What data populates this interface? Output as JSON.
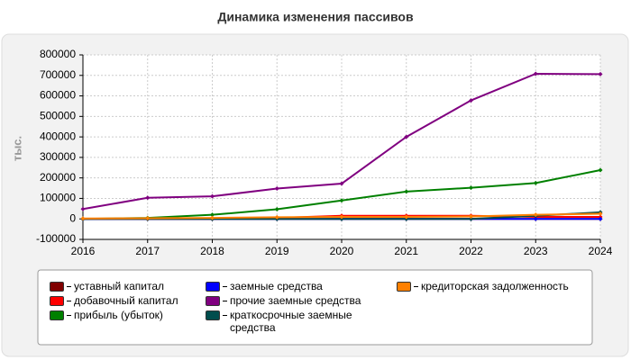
{
  "chart_data": {
    "type": "line",
    "title": "Динамика изменения пассивов",
    "y_label": "тыс.",
    "x": [
      2016,
      2017,
      2018,
      2019,
      2020,
      2021,
      2022,
      2023,
      2024
    ],
    "xlim": [
      2016,
      2024
    ],
    "xticks": [
      2016,
      2017,
      2018,
      2019,
      2020,
      2021,
      2022,
      2023,
      2024
    ],
    "ylim": [
      -100000,
      800000
    ],
    "yticks": [
      -100000,
      0,
      100000,
      200000,
      300000,
      400000,
      500000,
      600000,
      700000,
      800000
    ],
    "grid": true,
    "series": [
      {
        "name": "уставный капитал",
        "color": "#800000",
        "values": [
          0,
          0,
          0,
          0,
          0,
          0,
          0,
          0,
          0
        ]
      },
      {
        "name": "добавочный капитал",
        "color": "#ff0000",
        "values": [
          0,
          0,
          0,
          5000,
          15000,
          15000,
          15000,
          10000,
          10000
        ]
      },
      {
        "name": "прибыль (убыток)",
        "color": "#008000",
        "values": [
          0,
          5000,
          20000,
          47000,
          90000,
          133000,
          152000,
          175000,
          238000
        ]
      },
      {
        "name": "заемные средства",
        "color": "#0000ff",
        "values": [
          0,
          0,
          0,
          0,
          0,
          0,
          0,
          0,
          0
        ]
      },
      {
        "name": "прочие заемные средства",
        "color": "#800080",
        "values": [
          48000,
          103000,
          110000,
          148000,
          172000,
          400000,
          578000,
          708000,
          706000
        ]
      },
      {
        "name": "краткосрочные заемные средства",
        "color": "#004d4d",
        "values": [
          0,
          0,
          0,
          0,
          0,
          0,
          0,
          15000,
          32000
        ]
      },
      {
        "name": "кредиторская задолженность",
        "color": "#ff8000",
        "values": [
          2000,
          3000,
          5000,
          8000,
          10000,
          10000,
          12000,
          20000,
          25000
        ]
      }
    ]
  }
}
